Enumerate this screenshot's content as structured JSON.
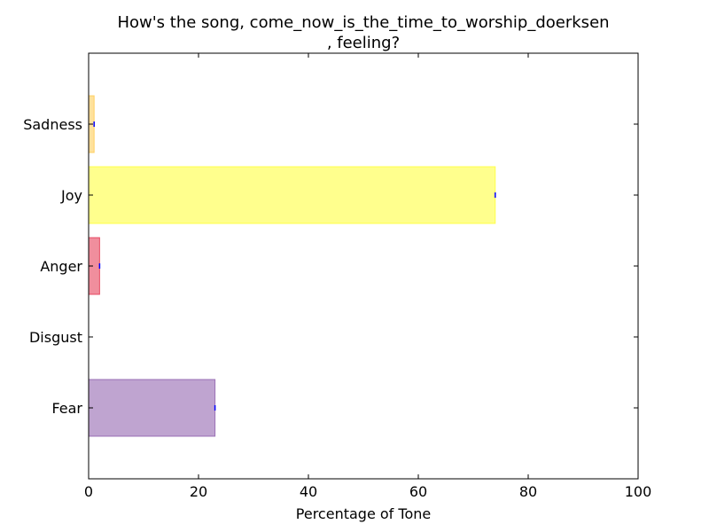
{
  "chart_data": {
    "type": "bar",
    "orientation": "horizontal",
    "title_lines": [
      "How's the song, come_now_is_the_time_to_worship_doerksen",
      ", feeling?"
    ],
    "xlabel": "Percentage of Tone",
    "ylabel": "",
    "xlim": [
      0,
      100
    ],
    "xticks": [
      0,
      20,
      40,
      60,
      80,
      100
    ],
    "categories": [
      "Fear",
      "Disgust",
      "Anger",
      "Joy",
      "Sadness"
    ],
    "values": [
      23,
      0,
      2,
      74,
      1
    ],
    "colors": [
      "#8a5aaa",
      "#3cb44b",
      "#e3314d",
      "#ffff30",
      "#ffc84a"
    ],
    "error_bar_color": "#0000ff",
    "grid": false,
    "legend": "none"
  }
}
